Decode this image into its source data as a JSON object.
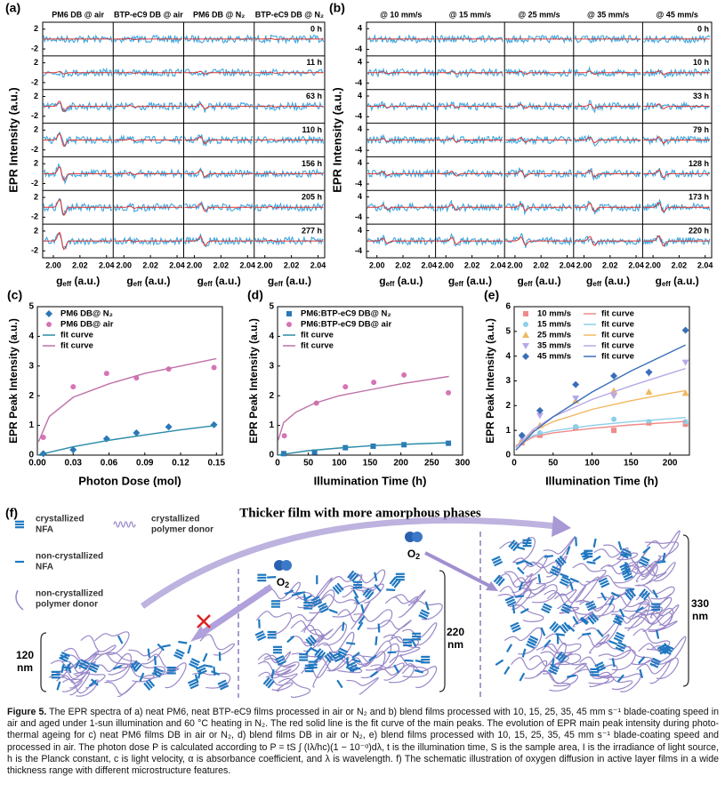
{
  "panels": {
    "a": {
      "label": "(a)",
      "columns": [
        "PM6 DB @ air",
        "BTP-eC9 DB @ air",
        "PM6 DB @ N₂",
        "BTP-eC9 DB @ N₂"
      ],
      "rows": [
        "0 h",
        "11 h",
        "63 h",
        "110 h",
        "156 h",
        "205 h",
        "277 h"
      ],
      "yticks": [
        2,
        -2
      ],
      "ylim": [
        -3.4,
        3.4
      ],
      "xticks": [
        {
          "value": 2.0,
          "label": "2.00"
        },
        {
          "value": 2.02,
          "label": "2.02"
        },
        {
          "value": 2.04,
          "label": "2.04"
        }
      ],
      "xlim": [
        1.992,
        2.045
      ],
      "xlabel": {
        "main": "g",
        "sub": "eff",
        "unit": " (a.u.)"
      },
      "ylabel": "EPR Intensity (a.u.)"
    },
    "b": {
      "label": "(b)",
      "columns": [
        "@ 10 mm/s",
        "@ 15 mm/s",
        "@ 25 mm/s",
        "@ 35 mm/s",
        "@ 45 mm/s"
      ],
      "rows": [
        "0 h",
        "10 h",
        "33 h",
        "79 h",
        "128 h",
        "173 h",
        "220 h"
      ],
      "yticks": [
        4,
        -4
      ],
      "ylim": [
        -6.5,
        6.5
      ],
      "xticks": [
        {
          "value": 2.0,
          "label": "2.00"
        },
        {
          "value": 2.02,
          "label": "2.02"
        },
        {
          "value": 2.04,
          "label": "2.04"
        }
      ],
      "xlim": [
        1.992,
        2.045
      ],
      "xlabel": {
        "main": "g",
        "sub": "eff",
        "unit": " (a.u.)"
      },
      "ylabel": "EPR Intensity (a.u.)"
    }
  },
  "chart_data": [
    {
      "type": "scatter",
      "label": "(c)",
      "xlabel": "Photon Dose (mol)",
      "ylabel": "EPR Peak Intensity (a.u.)",
      "xlim": [
        0,
        0.155
      ],
      "xticks": [
        {
          "value": 0,
          "label": "0.00"
        },
        {
          "value": 0.03,
          "label": "0.03"
        },
        {
          "value": 0.06,
          "label": "0.06"
        },
        {
          "value": 0.09,
          "label": "0.09"
        },
        {
          "value": 0.12,
          "label": "0.12"
        },
        {
          "value": 0.15,
          "label": "0.15"
        }
      ],
      "ylim": [
        0,
        5
      ],
      "yticks": [
        0,
        1,
        2,
        3,
        4,
        5
      ],
      "series": [
        {
          "name": "PM6 DB@ N₂",
          "color": "#2a78b8",
          "marker": "diamond",
          "x": [
            0.005,
            0.03,
            0.058,
            0.083,
            0.11,
            0.148
          ],
          "values": [
            0.05,
            0.18,
            0.55,
            0.75,
            0.95,
            1.02
          ]
        },
        {
          "name": "PM6 DB@ air",
          "color": "#d674b6",
          "marker": "circle",
          "x": [
            0.005,
            0.03,
            0.058,
            0.083,
            0.11,
            0.148
          ],
          "values": [
            0.6,
            2.3,
            2.75,
            2.6,
            2.9,
            2.95
          ]
        },
        {
          "name": "fit curve",
          "color": "#2a8aa8",
          "line": true,
          "x": [
            0,
            0.03,
            0.06,
            0.09,
            0.12,
            0.15
          ],
          "values": [
            0,
            0.28,
            0.5,
            0.68,
            0.85,
            1.0
          ]
        },
        {
          "name": "fit curve",
          "color": "#c070a8",
          "line": true,
          "x": [
            0.001,
            0.01,
            0.03,
            0.06,
            0.09,
            0.12,
            0.15
          ],
          "values": [
            0.45,
            1.3,
            1.95,
            2.4,
            2.75,
            3.0,
            3.25
          ]
        }
      ]
    },
    {
      "type": "scatter",
      "label": "(d)",
      "xlabel": "Illumination Time (h)",
      "ylabel": "EPR Peak Intensity (a.u.)",
      "xlim": [
        0,
        300
      ],
      "xticks": [
        0,
        50,
        100,
        150,
        200,
        250,
        300
      ],
      "ylim": [
        0,
        5
      ],
      "yticks": [
        0,
        1,
        2,
        3,
        4,
        5
      ],
      "series": [
        {
          "name": "PM6:BTP-eC9 DB@ N₂",
          "color": "#2a78b8",
          "marker": "square",
          "x": [
            10,
            60,
            110,
            155,
            205,
            277
          ],
          "values": [
            0.05,
            0.1,
            0.25,
            0.3,
            0.35,
            0.4
          ]
        },
        {
          "name": "PM6:BTP-eC9 DB@ air",
          "color": "#d674b6",
          "marker": "circle",
          "x": [
            11,
            63,
            110,
            156,
            205,
            277
          ],
          "values": [
            0.65,
            1.75,
            2.3,
            2.45,
            2.7,
            2.1
          ]
        },
        {
          "name": "fit curve",
          "color": "#2a8aa8",
          "line": true,
          "x": [
            0,
            50,
            100,
            150,
            200,
            278
          ],
          "values": [
            0,
            0.15,
            0.24,
            0.31,
            0.36,
            0.42
          ]
        },
        {
          "name": "fit curve",
          "color": "#c070a8",
          "line": true,
          "x": [
            1,
            10,
            30,
            60,
            100,
            150,
            200,
            278
          ],
          "values": [
            0.5,
            1.1,
            1.45,
            1.75,
            2.0,
            2.2,
            2.4,
            2.65
          ]
        }
      ]
    },
    {
      "type": "scatter",
      "label": "(e)",
      "xlabel": "Illumination Time (h)",
      "ylabel": "EPR Peak Intensity (a.u.)",
      "xlim": [
        0,
        225
      ],
      "xticks": [
        0,
        50,
        100,
        150,
        200
      ],
      "ylim": [
        0,
        6
      ],
      "yticks": [
        0,
        1,
        2,
        3,
        4,
        5,
        6
      ],
      "series": [
        {
          "name": "10 mm/s",
          "color": "#f08a8a",
          "marker": "square",
          "x": [
            10,
            33,
            79,
            128,
            173,
            220
          ],
          "values": [
            0.5,
            0.8,
            1.1,
            1.0,
            1.3,
            1.25
          ]
        },
        {
          "name": "15 mm/s",
          "color": "#8ccfe8",
          "marker": "circle",
          "x": [
            10,
            33,
            79,
            128,
            173,
            220
          ],
          "values": [
            0.55,
            0.9,
            1.15,
            1.45,
            1.35,
            1.35
          ]
        },
        {
          "name": "25 mm/s",
          "color": "#f2b860",
          "marker": "triangle",
          "x": [
            10,
            33,
            79,
            128,
            173,
            220
          ],
          "values": [
            0.6,
            1.2,
            2.2,
            2.6,
            2.55,
            2.5
          ]
        },
        {
          "name": "35 mm/s",
          "color": "#b8a8e8",
          "marker": "triangle-down",
          "x": [
            10,
            33,
            79,
            128,
            173,
            220
          ],
          "values": [
            0.7,
            1.6,
            2.3,
            2.4,
            3.3,
            3.75
          ]
        },
        {
          "name": "45 mm/s",
          "color": "#3a6fb8",
          "marker": "diamond",
          "x": [
            10,
            33,
            79,
            128,
            173,
            220
          ],
          "values": [
            0.8,
            1.8,
            2.85,
            3.2,
            3.35,
            5.05
          ]
        },
        {
          "name": "fit curve",
          "color": "#f08a8a",
          "line": true,
          "x": [
            2,
            25,
            50,
            100,
            150,
            200,
            220
          ],
          "values": [
            0.36,
            0.74,
            0.9,
            1.08,
            1.22,
            1.32,
            1.36
          ]
        },
        {
          "name": "fit curve",
          "color": "#8ccfe8",
          "line": true,
          "x": [
            2,
            25,
            50,
            100,
            150,
            200,
            220
          ],
          "values": [
            0.38,
            0.8,
            0.98,
            1.2,
            1.35,
            1.47,
            1.52
          ]
        },
        {
          "name": "fit curve",
          "color": "#f2b860",
          "line": true,
          "x": [
            2,
            25,
            50,
            100,
            150,
            200,
            220
          ],
          "values": [
            0.35,
            0.98,
            1.35,
            1.85,
            2.2,
            2.5,
            2.6
          ]
        },
        {
          "name": "fit curve",
          "color": "#b8a8e8",
          "line": true,
          "x": [
            2,
            25,
            50,
            100,
            150,
            200,
            220
          ],
          "values": [
            0.3,
            1.05,
            1.55,
            2.25,
            2.8,
            3.3,
            3.5
          ]
        },
        {
          "name": "fit curve",
          "color": "#3a6fb8",
          "line": true,
          "x": [
            2,
            25,
            50,
            100,
            150,
            200,
            220
          ],
          "values": [
            0.2,
            0.95,
            1.55,
            2.55,
            3.4,
            4.15,
            4.45
          ]
        }
      ]
    }
  ],
  "schematic": {
    "label": "(f)",
    "title": "Thicker film with more amorphous phases",
    "legend": [
      [
        "crystallized",
        "NFA"
      ],
      [
        "crystallized",
        "polymer donor"
      ],
      [
        "non-crystallized",
        "NFA"
      ],
      [
        "non-crystallized",
        "polymer donor"
      ]
    ],
    "oxygen": "O",
    "oxygen_sub": "2",
    "thickness": [
      [
        "120",
        "nm"
      ],
      [
        "220",
        "nm"
      ],
      [
        "330",
        "nm"
      ]
    ]
  },
  "caption": {
    "label": "Figure 5.",
    "text": " The EPR spectra of a) neat PM6, neat BTP-eC9 films processed in air or N₂ and b) blend films processed with 10, 15, 25, 35, 45 mm s⁻¹ blade-coating speed in air and aged under 1-sun illumination and 60 °C heating in N₂. The red solid line is the fit curve of the main peaks. The evolution of EPR main peak intensity during photo-thermal ageing for c) neat PM6 films DB in air or N₂, d) blend films DB in air or N₂, e) blend films processed with 10, 15, 25, 35, 45 mm s⁻¹ blade-coating speed and processed in air. The photon dose P is calculated according to P = tS ∫ (Iλ/hc)(1 − 10⁻ᵅ)dλ, t is the illumination time, S is the sample area, I is the irradiance of light source, h is the Planck constant, c is light velocity, α is absorbance coefficient, and λ is wavelength. f) The schematic illustration of oxygen diffusion in active layer films in a wide thickness range with different microstructure features."
  }
}
